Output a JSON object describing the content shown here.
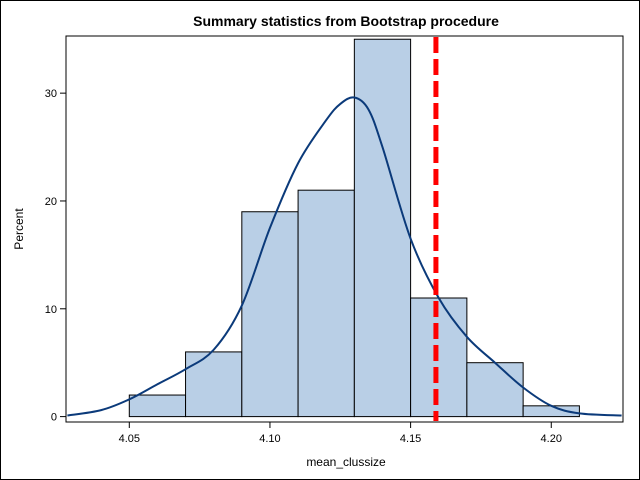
{
  "chart_data": {
    "type": "bar",
    "subtype": "histogram",
    "title": "Summary statistics from Bootstrap procedure",
    "xlabel": "mean_clussize",
    "ylabel": "Percent",
    "xlim": [
      4.0275,
      4.2255
    ],
    "ylim": [
      -0.5,
      35.3
    ],
    "x_ticks": [
      "4.05",
      "4.10",
      "4.15",
      "4.20"
    ],
    "x_tick_values": [
      4.05,
      4.1,
      4.15,
      4.2
    ],
    "y_ticks": [
      "0",
      "10",
      "20",
      "30"
    ],
    "y_tick_values": [
      0,
      10,
      20,
      30
    ],
    "bins": [
      {
        "start": 4.05,
        "end": 4.07,
        "value": 2
      },
      {
        "start": 4.07,
        "end": 4.09,
        "value": 6
      },
      {
        "start": 4.09,
        "end": 4.11,
        "value": 19
      },
      {
        "start": 4.11,
        "end": 4.13,
        "value": 21
      },
      {
        "start": 4.13,
        "end": 4.15,
        "value": 35
      },
      {
        "start": 4.15,
        "end": 4.17,
        "value": 11
      },
      {
        "start": 4.17,
        "end": 4.19,
        "value": 5
      },
      {
        "start": 4.19,
        "end": 4.21,
        "value": 1
      }
    ],
    "density_curve": {
      "x": [
        4.028,
        4.04,
        4.05,
        4.06,
        4.07,
        4.08,
        4.09,
        4.1,
        4.11,
        4.12,
        4.125,
        4.13,
        4.135,
        4.14,
        4.15,
        4.16,
        4.17,
        4.18,
        4.19,
        4.2,
        4.21,
        4.225
      ],
      "y": [
        0.1,
        0.6,
        1.6,
        3.0,
        4.4,
        6.2,
        10.3,
        17.5,
        23.5,
        27.5,
        29.0,
        29.6,
        28.5,
        25.0,
        16.5,
        11.0,
        7.4,
        5.0,
        2.7,
        1.0,
        0.3,
        0.1
      ]
    },
    "reference_line": {
      "x": 4.159
    },
    "colors": {
      "bar_fill": "#b9cfe6",
      "bar_stroke": "#000000",
      "curve": "#0b3a7a",
      "reference": "#ff0000"
    },
    "grid": false,
    "legend": "none"
  }
}
